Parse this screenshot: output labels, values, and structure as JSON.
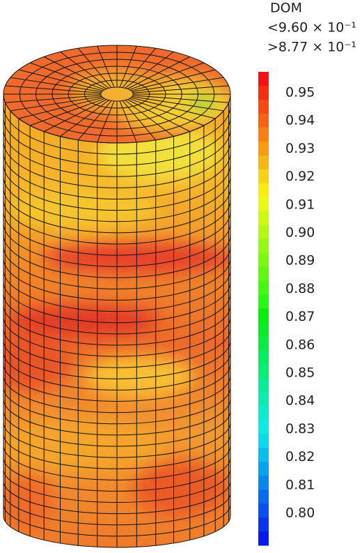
{
  "legend": {
    "title": "DOM",
    "max_label": "<9.60 × 10⁻¹",
    "min_label": ">8.77 × 10⁻¹",
    "ticks": [
      "0.95",
      "0.94",
      "0.93",
      "0.92",
      "0.91",
      "0.90",
      "0.89",
      "0.88",
      "0.87",
      "0.86",
      "0.85",
      "0.84",
      "0.83",
      "0.82",
      "0.81",
      "0.80"
    ]
  }
}
